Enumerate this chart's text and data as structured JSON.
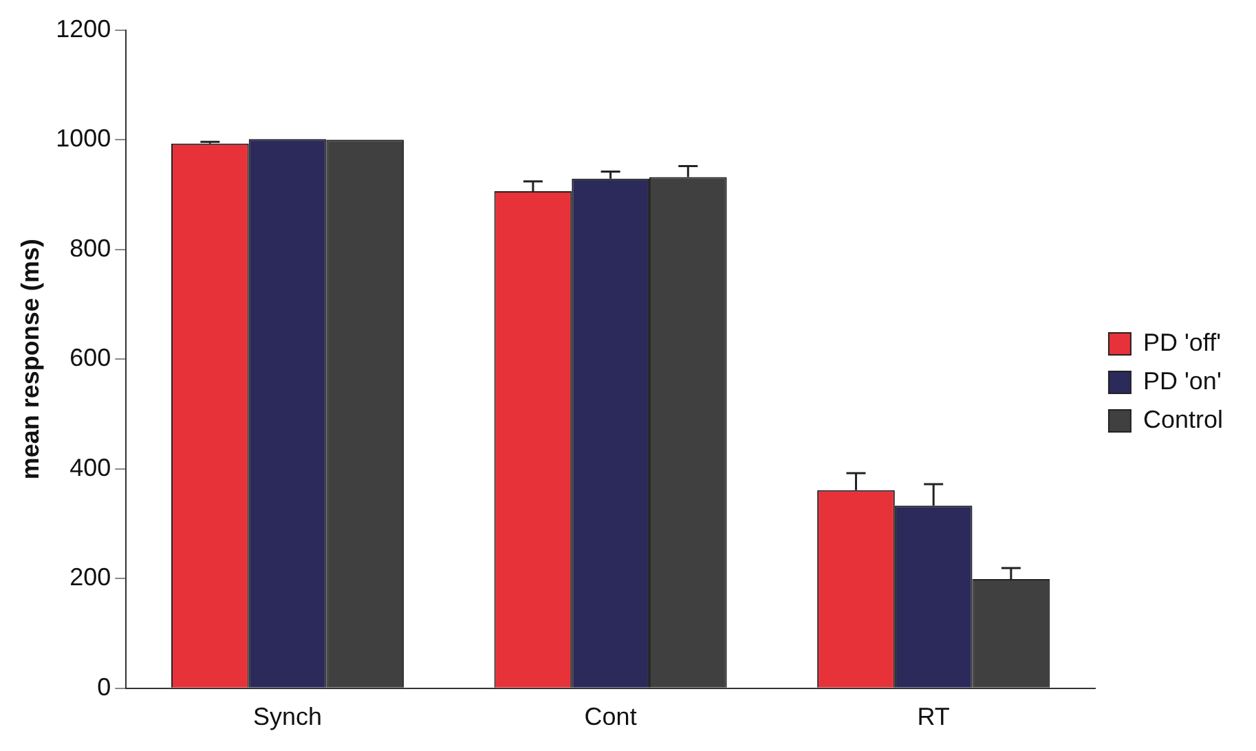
{
  "chart_data": {
    "type": "bar",
    "ylabel": "mean response (ms)",
    "categories": [
      "Synch",
      "Cont",
      "RT"
    ],
    "series": [
      {
        "name": "PD 'off'",
        "color": "#e8323a",
        "values": [
          993,
          906,
          361
        ],
        "errors": [
          3,
          18,
          31
        ]
      },
      {
        "name": "PD 'on'",
        "color": "#2b2a5a",
        "values": [
          1001,
          929,
          333
        ],
        "errors": [
          null,
          13,
          39
        ]
      },
      {
        "name": "Control",
        "color": "#404040",
        "values": [
          1000,
          932,
          199
        ],
        "errors": [
          null,
          20,
          20
        ]
      }
    ],
    "ylim": [
      0,
      1200
    ],
    "yticks": [
      0,
      200,
      400,
      600,
      800,
      1000,
      1200
    ],
    "grid": false,
    "legend": "right"
  }
}
